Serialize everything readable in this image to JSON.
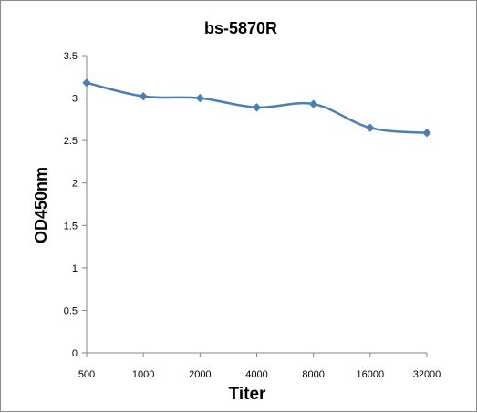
{
  "chart_data": {
    "type": "line",
    "title": "bs-5870R",
    "xlabel": "Titer",
    "ylabel": "OD450nm",
    "categories": [
      "500",
      "1000",
      "2000",
      "4000",
      "8000",
      "16000",
      "32000"
    ],
    "series": [
      {
        "values": [
          3.18,
          3.02,
          3.0,
          2.89,
          2.93,
          2.65,
          2.59
        ]
      }
    ],
    "ylim": [
      0,
      3.5
    ],
    "yticks": [
      "0",
      "0.5",
      "1",
      "1.5",
      "2",
      "2.5",
      "3",
      "3.5"
    ],
    "grid": false,
    "legend": "none",
    "colors": {
      "series": "#4a7ebb",
      "axis": "#868686"
    }
  }
}
